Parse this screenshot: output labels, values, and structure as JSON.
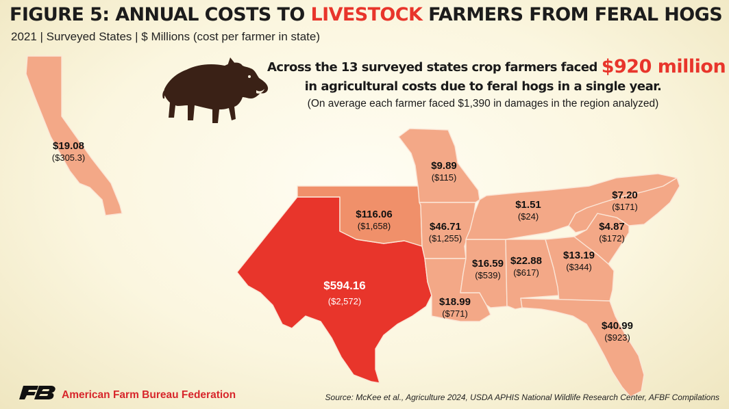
{
  "header": {
    "title_prefix": "FIGURE 5: ANNUAL COSTS TO ",
    "title_highlight": "LIVESTOCK",
    "title_suffix": " FARMERS FROM FERAL HOGS",
    "subtitle": "2021 | Surveyed States | $ Millions (cost per farmer in state)"
  },
  "callout": {
    "line1_text": "Across the 13 surveyed states crop farmers faced ",
    "line1_amount": "$920 million",
    "line2": "in agricultural costs due to feral hogs in a single year.",
    "line3": "(On average each farmer faced $1,390 in damages in the region analyzed)"
  },
  "icons": {
    "hog": "feral-hog-icon",
    "logo": "farm-bureau-logo"
  },
  "colors": {
    "low": "#f3a887",
    "mid": "#f0906a",
    "high": "#e8352b",
    "accent": "#e8352b"
  },
  "chart_data": {
    "type": "choropleth",
    "title": "FIGURE 5: ANNUAL COSTS TO LIVESTOCK FARMERS FROM FERAL HOGS",
    "unit": "$ Millions (cost per farmer in state)",
    "year": 2021,
    "states": [
      {
        "name": "California",
        "cost": "$19.08",
        "per_farmer": "($305.3)",
        "value": 19.08,
        "per_farmer_value": 305.3
      },
      {
        "name": "Texas",
        "cost": "$594.16",
        "per_farmer": "($2,572)",
        "value": 594.16,
        "per_farmer_value": 2572
      },
      {
        "name": "Oklahoma",
        "cost": "$116.06",
        "per_farmer": "($1,658)",
        "value": 116.06,
        "per_farmer_value": 1658
      },
      {
        "name": "Missouri",
        "cost": "$9.89",
        "per_farmer": "($115)",
        "value": 9.89,
        "per_farmer_value": 115
      },
      {
        "name": "Arkansas",
        "cost": "$46.71",
        "per_farmer": "($1,255)",
        "value": 46.71,
        "per_farmer_value": 1255
      },
      {
        "name": "Louisiana",
        "cost": "$18.99",
        "per_farmer": "($771)",
        "value": 18.99,
        "per_farmer_value": 771
      },
      {
        "name": "Mississippi",
        "cost": "$16.59",
        "per_farmer": "($539)",
        "value": 16.59,
        "per_farmer_value": 539
      },
      {
        "name": "Alabama",
        "cost": "$22.88",
        "per_farmer": "($617)",
        "value": 22.88,
        "per_farmer_value": 617
      },
      {
        "name": "Georgia",
        "cost": "$13.19",
        "per_farmer": "($344)",
        "value": 13.19,
        "per_farmer_value": 344
      },
      {
        "name": "Florida",
        "cost": "$40.99",
        "per_farmer": "($923)",
        "value": 40.99,
        "per_farmer_value": 923
      },
      {
        "name": "South Carolina",
        "cost": "$4.87",
        "per_farmer": "($172)",
        "value": 4.87,
        "per_farmer_value": 172
      },
      {
        "name": "North Carolina",
        "cost": "$7.20",
        "per_farmer": "($171)",
        "value": 7.2,
        "per_farmer_value": 171
      },
      {
        "name": "Tennessee",
        "cost": "$1.51",
        "per_farmer": "($24)",
        "value": 1.51,
        "per_farmer_value": 24
      }
    ]
  },
  "footer": {
    "org": "American Farm Bureau Federation",
    "source": "Source: McKee et al., Agriculture 2024, USDA APHIS National Wildlife Research Center, AFBF Compilations"
  }
}
